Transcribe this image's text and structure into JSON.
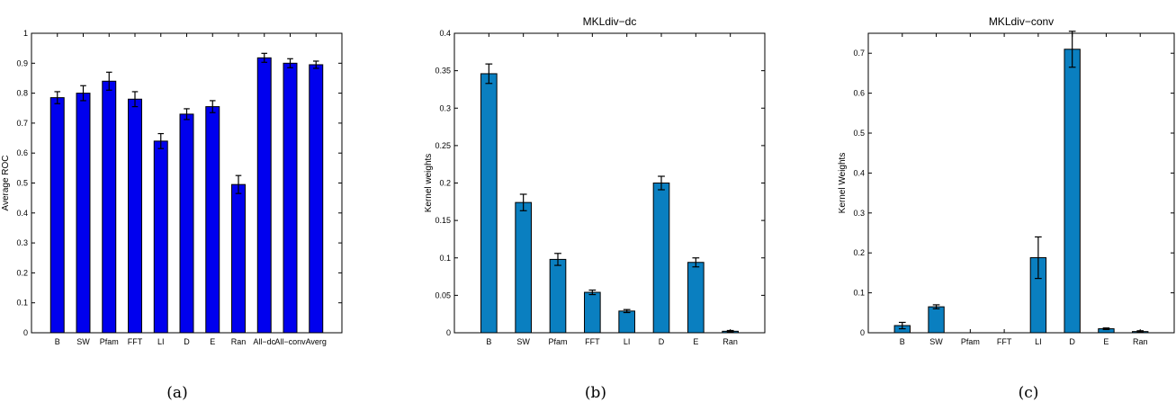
{
  "chart_data": [
    {
      "type": "bar",
      "title": "",
      "caption": "(a)",
      "xlabel": "",
      "ylabel": "Average ROC",
      "ylim": [
        0,
        1
      ],
      "yticks": [
        0,
        0.1,
        0.2,
        0.3,
        0.4,
        0.5,
        0.6,
        0.7,
        0.8,
        0.9,
        1
      ],
      "ytick_labels": [
        "0",
        "0.1",
        "0.2",
        "0.3",
        "0.4",
        "0.5",
        "0.6",
        "0.7",
        "0.8",
        "0.9",
        "1"
      ],
      "categories": [
        "B",
        "SW",
        "Pfam",
        "FFT",
        "LI",
        "D",
        "E",
        "Ran",
        "All−dc",
        "All−conv",
        "Averg"
      ],
      "values": [
        0.785,
        0.8,
        0.84,
        0.78,
        0.64,
        0.73,
        0.755,
        0.495,
        0.918,
        0.9,
        0.895
      ],
      "errors": [
        0.02,
        0.025,
        0.03,
        0.025,
        0.025,
        0.018,
        0.02,
        0.03,
        0.015,
        0.015,
        0.012
      ],
      "bar_color": "#0000ee",
      "grid": false
    },
    {
      "type": "bar",
      "title": "MKLdiv−dc",
      "caption": "(b)",
      "xlabel": "",
      "ylabel": "Kernel weights",
      "ylim": [
        0,
        0.4
      ],
      "yticks": [
        0,
        0.05,
        0.1,
        0.15,
        0.2,
        0.25,
        0.3,
        0.35,
        0.4
      ],
      "ytick_labels": [
        "0",
        "0.05",
        "0.1",
        "0.15",
        "0.2",
        "0.25",
        "0.3",
        "0.35",
        "0.4"
      ],
      "categories": [
        "B",
        "SW",
        "Pfam",
        "FFT",
        "LI",
        "D",
        "E",
        "Ran"
      ],
      "values": [
        0.346,
        0.174,
        0.098,
        0.054,
        0.029,
        0.2,
        0.094,
        0.002
      ],
      "errors": [
        0.013,
        0.011,
        0.008,
        0.003,
        0.002,
        0.009,
        0.006,
        0.001
      ],
      "bar_color": "#0a7fc0",
      "grid": false
    },
    {
      "type": "bar",
      "title": "MKLdiv−conv",
      "caption": "(c)",
      "xlabel": "",
      "ylabel": "Kernel Weights",
      "ylim": [
        0,
        0.75
      ],
      "yticks": [
        0,
        0.1,
        0.2,
        0.3,
        0.4,
        0.5,
        0.6,
        0.7
      ],
      "ytick_labels": [
        "0",
        "0.1",
        "0.2",
        "0.3",
        "0.4",
        "0.5",
        "0.6",
        "0.7"
      ],
      "categories": [
        "B",
        "SW",
        "Pfam",
        "FFT",
        "LI",
        "D",
        "E",
        "Ran"
      ],
      "values": [
        0.018,
        0.065,
        0,
        0,
        0.188,
        0.71,
        0.01,
        0.003
      ],
      "errors": [
        0.008,
        0.005,
        0,
        0,
        0.052,
        0.045,
        0.002,
        0.002
      ],
      "bar_color": "#0a7fc0",
      "grid": false
    }
  ]
}
